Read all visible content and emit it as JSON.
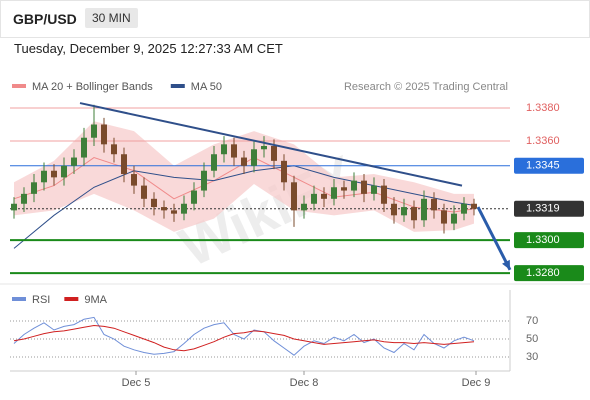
{
  "header": {
    "pair": "GBP/USD",
    "timeframe": "30 MIN",
    "date": "Tuesday, December 9, 2025 12:27:33 AM CET"
  },
  "chart_data": [
    {
      "type": "candlestick",
      "legend": [
        {
          "name": "MA 20 + Bollinger Bands",
          "color": "#f08a8a"
        },
        {
          "name": "MA 50",
          "color": "#2f4f8a"
        }
      ],
      "credit": "Research © 2025 Trading Central",
      "watermark": "WikiFX",
      "xlim": [
        -0.4,
        49.6
      ],
      "ylim": [
        1.3274,
        1.34
      ],
      "colors": {
        "up": "#3f7f3a",
        "down": "#7a4b2c"
      },
      "candles": [
        [
          1.3318,
          1.3326,
          1.3313,
          1.3322
        ],
        [
          1.3322,
          1.3332,
          1.3317,
          1.3328
        ],
        [
          1.3328,
          1.334,
          1.3323,
          1.3335
        ],
        [
          1.3335,
          1.3347,
          1.333,
          1.3342
        ],
        [
          1.3342,
          1.3346,
          1.3333,
          1.3338
        ],
        [
          1.3338,
          1.335,
          1.3333,
          1.3345
        ],
        [
          1.3345,
          1.3355,
          1.334,
          1.335
        ],
        [
          1.335,
          1.3368,
          1.3345,
          1.3362
        ],
        [
          1.3362,
          1.3382,
          1.3357,
          1.337
        ],
        [
          1.337,
          1.3374,
          1.3353,
          1.3358
        ],
        [
          1.3358,
          1.3362,
          1.3347,
          1.3352
        ],
        [
          1.3352,
          1.3356,
          1.3335,
          1.334
        ],
        [
          1.334,
          1.3345,
          1.3328,
          1.3333
        ],
        [
          1.3333,
          1.3338,
          1.332,
          1.3325
        ],
        [
          1.3325,
          1.3329,
          1.3315,
          1.332
        ],
        [
          1.332,
          1.3324,
          1.3313,
          1.3318
        ],
        [
          1.3318,
          1.3322,
          1.3311,
          1.3316
        ],
        [
          1.3316,
          1.3327,
          1.3312,
          1.3322
        ],
        [
          1.3322,
          1.3335,
          1.3318,
          1.333
        ],
        [
          1.333,
          1.3347,
          1.3326,
          1.3342
        ],
        [
          1.3342,
          1.3357,
          1.3338,
          1.3352
        ],
        [
          1.3352,
          1.3363,
          1.3347,
          1.3358
        ],
        [
          1.3358,
          1.3362,
          1.3345,
          1.335
        ],
        [
          1.335,
          1.3354,
          1.334,
          1.3345
        ],
        [
          1.3345,
          1.336,
          1.3341,
          1.3355
        ],
        [
          1.3355,
          1.3363,
          1.335,
          1.3357
        ],
        [
          1.3357,
          1.3361,
          1.3343,
          1.3348
        ],
        [
          1.3348,
          1.3352,
          1.333,
          1.3335
        ],
        [
          1.3335,
          1.3339,
          1.3308,
          1.3318
        ],
        [
          1.3318,
          1.3327,
          1.3313,
          1.3322
        ],
        [
          1.3322,
          1.3333,
          1.3318,
          1.3328
        ],
        [
          1.3328,
          1.3332,
          1.332,
          1.3325
        ],
        [
          1.3325,
          1.3337,
          1.3321,
          1.3332
        ],
        [
          1.3332,
          1.3336,
          1.3325,
          1.333
        ],
        [
          1.333,
          1.3341,
          1.3326,
          1.3336
        ],
        [
          1.3336,
          1.334,
          1.3323,
          1.3328
        ],
        [
          1.3328,
          1.3338,
          1.3324,
          1.3333
        ],
        [
          1.3333,
          1.3337,
          1.3317,
          1.3322
        ],
        [
          1.3322,
          1.3326,
          1.331,
          1.3315
        ],
        [
          1.3315,
          1.3325,
          1.3311,
          1.332
        ],
        [
          1.332,
          1.3324,
          1.3307,
          1.3312
        ],
        [
          1.3312,
          1.333,
          1.3308,
          1.3325
        ],
        [
          1.3325,
          1.3329,
          1.3313,
          1.3318
        ],
        [
          1.3318,
          1.3322,
          1.3304,
          1.331
        ],
        [
          1.331,
          1.3321,
          1.3306,
          1.3316
        ],
        [
          1.3316,
          1.3326,
          1.3312,
          1.3322
        ],
        [
          1.3322,
          1.3325,
          1.3315,
          1.3319
        ]
      ],
      "band_x": [
        0,
        4,
        8,
        12,
        16,
        20,
        24,
        28,
        32,
        36,
        40,
        44,
        46
      ],
      "band_upper": [
        1.3335,
        1.3348,
        1.3372,
        1.3366,
        1.3345,
        1.3358,
        1.3366,
        1.3358,
        1.3338,
        1.334,
        1.3335,
        1.3328,
        1.3328
      ],
      "band_lower": [
        1.3315,
        1.3318,
        1.3328,
        1.3318,
        1.3305,
        1.3313,
        1.3334,
        1.3318,
        1.3315,
        1.3318,
        1.3305,
        1.3306,
        1.331
      ],
      "ma20": [
        1.3325,
        1.3333,
        1.335,
        1.3342,
        1.3325,
        1.3336,
        1.335,
        1.3338,
        1.3326,
        1.3329,
        1.332,
        1.3317,
        1.3319
      ],
      "ma50": [
        1.3295,
        1.3315,
        1.3332,
        1.3342,
        1.3338,
        1.3336,
        1.3342,
        1.3345,
        1.3338,
        1.3333,
        1.3328,
        1.3323,
        1.3321
      ],
      "trendline": [
        [
          6.6,
          1.3383
        ],
        [
          44.8,
          1.3333
        ]
      ],
      "arrow": [
        [
          46.4,
          1.332
        ],
        [
          49.6,
          1.3282
        ]
      ],
      "levels": [
        {
          "value": 1.338,
          "label": "1.3380",
          "kind": "resistance"
        },
        {
          "value": 1.336,
          "label": "1.3360",
          "kind": "resistance"
        },
        {
          "value": 1.3345,
          "label": "1.3345",
          "kind": "pivot"
        },
        {
          "value": 1.3319,
          "label": "1.3319",
          "kind": "last"
        },
        {
          "value": 1.33,
          "label": "1.3300",
          "kind": "support"
        },
        {
          "value": 1.328,
          "label": "1.3280",
          "kind": "support"
        }
      ],
      "level_colors": {
        "resistance": "#e06060",
        "pivot": "#2a6fdb",
        "last": "#333333",
        "support": "#1a8a1a"
      }
    },
    {
      "type": "rsi",
      "series": [
        {
          "name": "RSI",
          "color": "#6f8fd8",
          "values": [
            45,
            55,
            62,
            68,
            60,
            64,
            66,
            72,
            74,
            55,
            50,
            42,
            38,
            35,
            33,
            34,
            36,
            45,
            55,
            62,
            66,
            68,
            55,
            50,
            60,
            58,
            48,
            40,
            32,
            42,
            48,
            45,
            52,
            48,
            55,
            46,
            50,
            40,
            35,
            45,
            38,
            55,
            45,
            40,
            48,
            52,
            48
          ]
        },
        {
          "name": "9MA",
          "color": "#d02020",
          "values": [
            48,
            50,
            53,
            56,
            58,
            59,
            61,
            63,
            65,
            64,
            62,
            58,
            54,
            50,
            46,
            41,
            38,
            37,
            39,
            43,
            47,
            52,
            56,
            57,
            59,
            58,
            56,
            54,
            50,
            48,
            46,
            44,
            45,
            46,
            47,
            48,
            49,
            47,
            46,
            46,
            45,
            46,
            45,
            44,
            45,
            46,
            47
          ]
        }
      ],
      "ylim": [
        20,
        100
      ],
      "yticks": [
        30,
        50,
        70
      ],
      "xticks": [
        {
          "value": 12.2,
          "label": "Dec 5"
        },
        {
          "value": 29,
          "label": "Dec 8"
        },
        {
          "value": 46.2,
          "label": "Dec 9"
        }
      ]
    }
  ]
}
